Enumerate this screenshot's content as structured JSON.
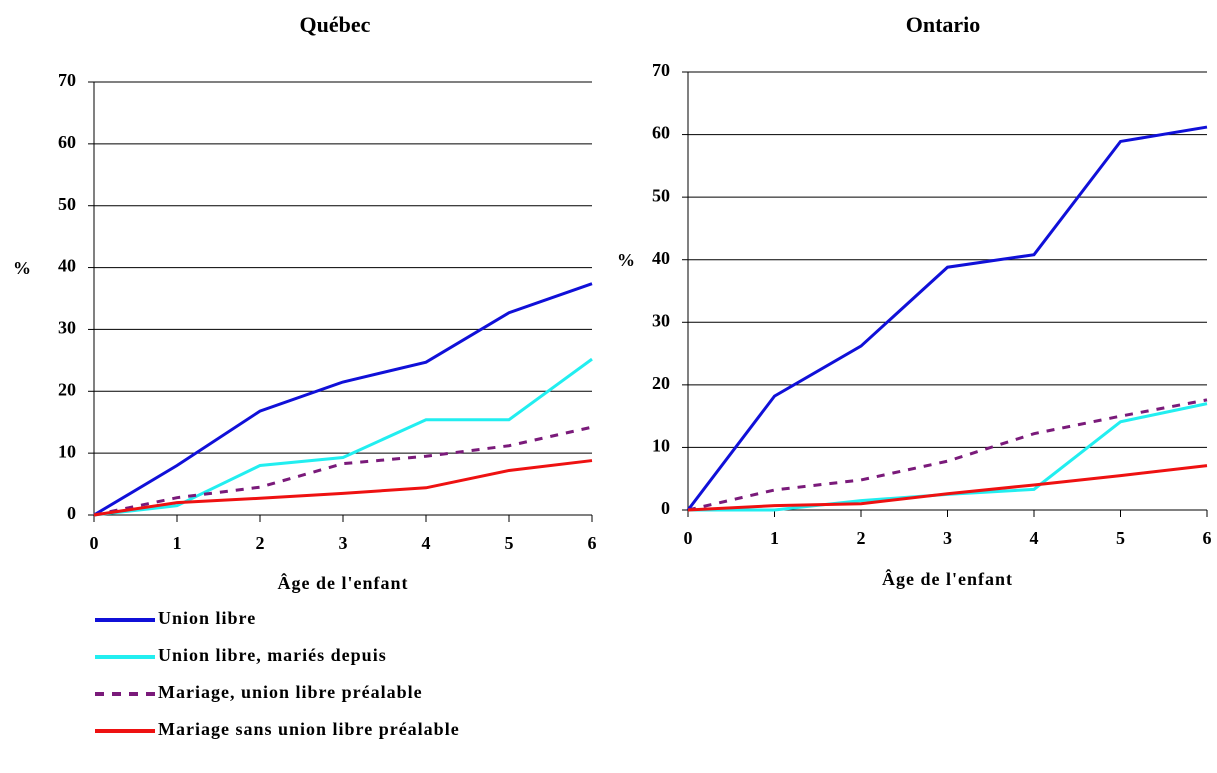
{
  "legend": [
    {
      "name": "Union libre",
      "color": "#1010d8",
      "dash": false
    },
    {
      "name": "Union libre, mariés depuis",
      "color": "#22eef0",
      "dash": false
    },
    {
      "name": "Mariage, union libre préalable",
      "color": "#7a1a7a",
      "dash": true
    },
    {
      "name": "Mariage sans union libre préalable",
      "color": "#ee1111",
      "dash": false
    }
  ],
  "chart_data": [
    {
      "type": "line",
      "title": "Québec",
      "xlabel": "Âge de l'enfant",
      "ylabel": "%",
      "x": [
        0,
        1,
        2,
        3,
        4,
        5,
        6
      ],
      "xlim": [
        0,
        6
      ],
      "xticks": [
        0,
        1,
        2,
        3,
        4,
        5,
        6
      ],
      "ylim": [
        0,
        70
      ],
      "yticks": [
        0,
        10,
        20,
        30,
        40,
        50,
        60,
        70
      ],
      "grid": true,
      "series": [
        {
          "values": [
            0,
            8,
            16.8,
            21.5,
            24.7,
            32.7,
            37.4
          ]
        },
        {
          "values": [
            0,
            1.5,
            8,
            9.3,
            15.4,
            15.4,
            25.2
          ]
        },
        {
          "values": [
            0,
            2.8,
            4.5,
            8.3,
            9.5,
            11.2,
            14.2
          ]
        },
        {
          "values": [
            0,
            2,
            2.7,
            3.5,
            4.4,
            7.2,
            8.8
          ]
        }
      ]
    },
    {
      "type": "line",
      "title": "Ontario",
      "xlabel": "Âge de l'enfant",
      "ylabel": "%",
      "x": [
        0,
        1,
        2,
        3,
        4,
        5,
        6
      ],
      "xlim": [
        0,
        6
      ],
      "xticks": [
        0,
        1,
        2,
        3,
        4,
        5,
        6
      ],
      "ylim": [
        0,
        70
      ],
      "yticks": [
        0,
        10,
        20,
        30,
        40,
        50,
        60,
        70
      ],
      "grid": true,
      "series": [
        {
          "values": [
            0,
            18.2,
            26.2,
            38.8,
            40.8,
            58.9,
            61.2
          ]
        },
        {
          "values": [
            0,
            0,
            1.5,
            2.5,
            3.3,
            14.1,
            17
          ]
        },
        {
          "values": [
            0,
            3.2,
            4.8,
            7.8,
            12.2,
            15,
            17.6
          ]
        },
        {
          "values": [
            0,
            0.7,
            1,
            2.6,
            4,
            5.5,
            7.1
          ]
        }
      ]
    }
  ]
}
